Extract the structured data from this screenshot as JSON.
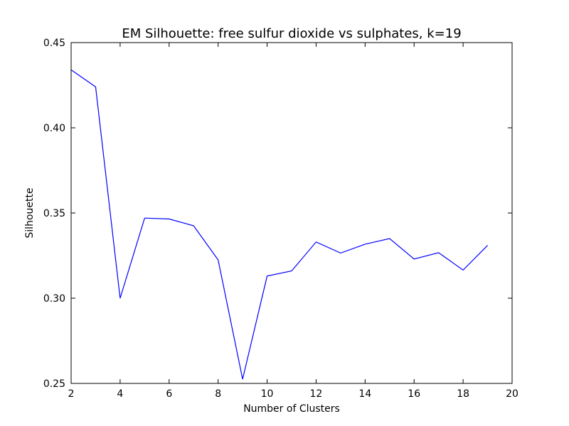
{
  "chart_data": {
    "type": "line",
    "title": "EM Silhouette: free sulfur dioxide vs sulphates, k=19",
    "xlabel": "Number of Clusters",
    "ylabel": "Silhouette",
    "xlim": [
      2,
      20
    ],
    "ylim": [
      0.25,
      0.45
    ],
    "xticks": [
      2,
      4,
      6,
      8,
      10,
      12,
      14,
      16,
      18,
      20
    ],
    "xtick_labels": [
      "2",
      "4",
      "6",
      "8",
      "10",
      "12",
      "14",
      "16",
      "18",
      "20"
    ],
    "yticks": [
      0.25,
      0.3,
      0.35,
      0.4,
      0.45
    ],
    "ytick_labels": [
      "0.25",
      "0.30",
      "0.35",
      "0.40",
      "0.45"
    ],
    "grid": false,
    "series": [
      {
        "color": "#0000ff",
        "x": [
          2,
          3,
          4,
          5,
          6,
          7,
          8,
          9,
          10,
          11,
          12,
          13,
          14,
          15,
          16,
          17,
          18,
          19
        ],
        "values": [
          0.434,
          0.424,
          0.3,
          0.347,
          0.3465,
          0.3425,
          0.3225,
          0.2525,
          0.313,
          0.316,
          0.333,
          0.3265,
          0.3317,
          0.335,
          0.323,
          0.3267,
          0.3165,
          0.331
        ]
      }
    ]
  }
}
